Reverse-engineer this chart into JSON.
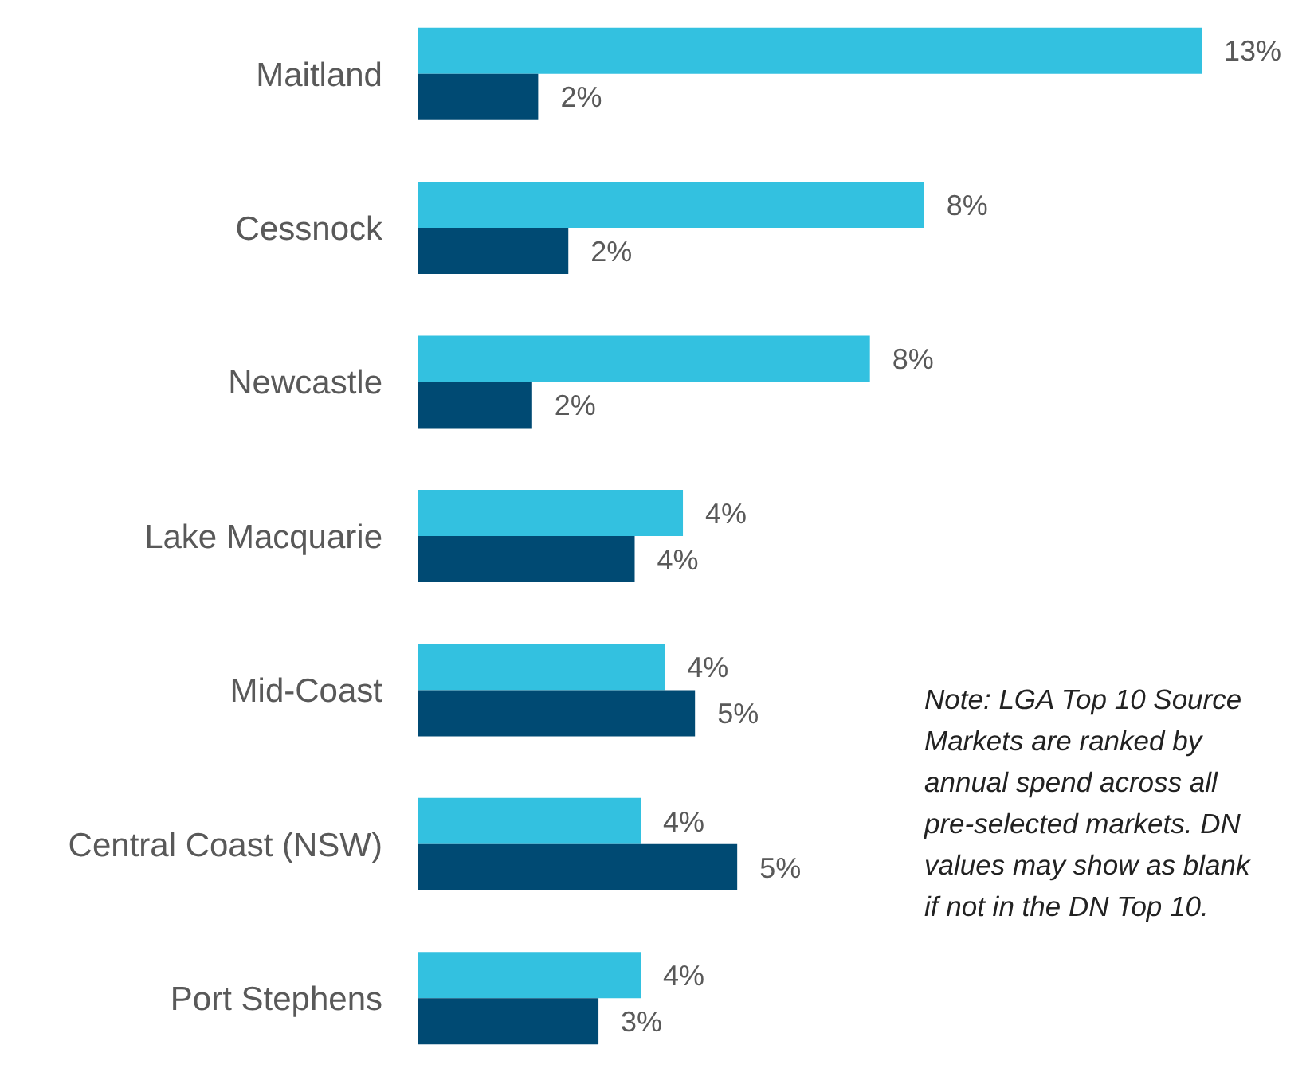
{
  "chart_data": {
    "type": "bar",
    "orientation": "horizontal",
    "categories": [
      "Maitland",
      "Cessnock",
      "Newcastle",
      "Lake Macquarie",
      "Mid-Coast",
      "Central Coast (NSW)",
      "Port Stephens"
    ],
    "series": [
      {
        "color": "#33c1e0",
        "values": [
          13.0,
          8.4,
          7.5,
          4.4,
          4.1,
          3.7,
          3.7
        ],
        "value_labels": [
          "13%",
          "8%",
          "8%",
          "4%",
          "4%",
          "4%",
          "4%"
        ]
      },
      {
        "color": "#004a73",
        "values": [
          2.0,
          2.5,
          1.9,
          3.6,
          4.6,
          5.3,
          3.0
        ],
        "value_labels": [
          "2%",
          "2%",
          "2%",
          "4%",
          "5%",
          "5%",
          "3%"
        ]
      }
    ],
    "tick_labels": "y",
    "grid": false,
    "legend": false,
    "annotations": [
      "Note: LGA Top 10 Source Markets are ranked by annual spend across all pre-selected markets. DN values may show as blank if not in the DN Top 10."
    ]
  }
}
